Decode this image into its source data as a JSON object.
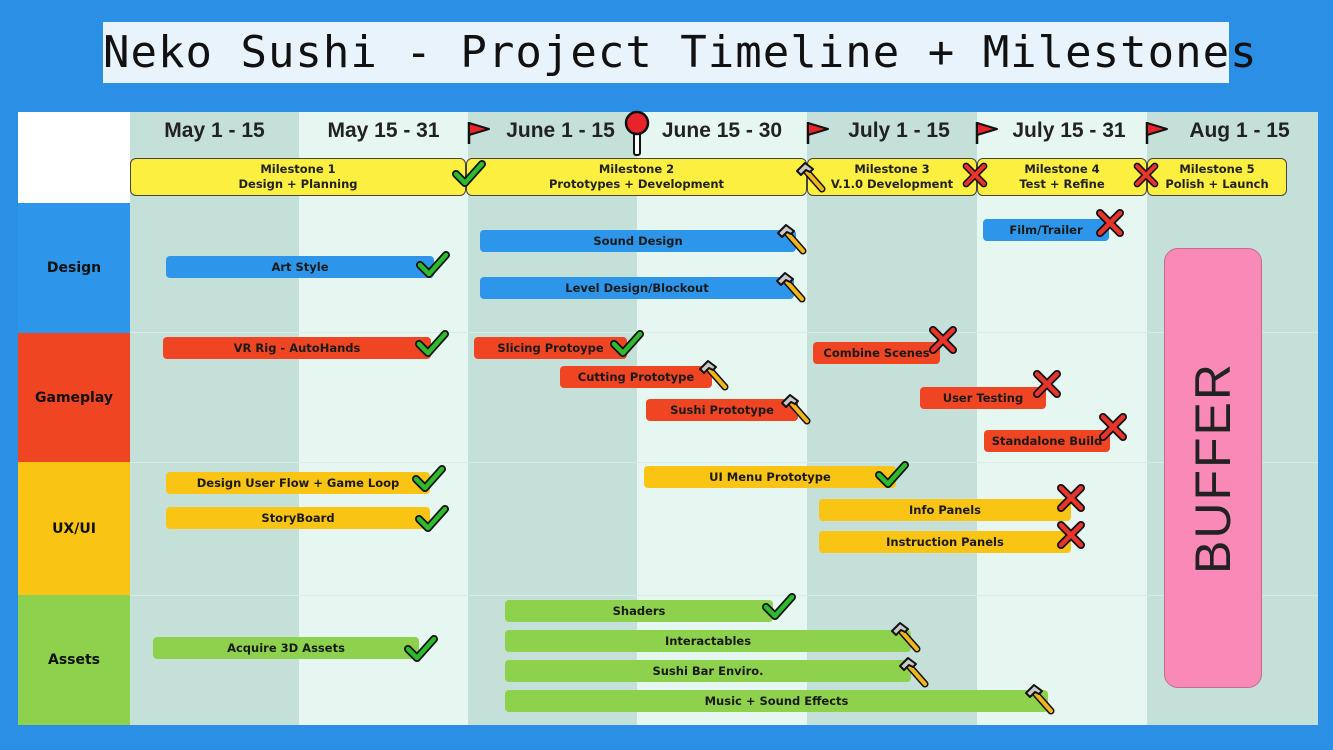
{
  "title": "Neko Sushi - Project Timeline + Milestones",
  "columns": [
    "May 1 - 15",
    "May 15 - 31",
    "June 1 - 15",
    "June 15 - 30",
    "July 1 - 15",
    "July 15 - 31",
    "Aug 1 - 15"
  ],
  "milestones": [
    {
      "name": "Milestone 1",
      "desc": "Design + Planning",
      "status": "done"
    },
    {
      "name": "Milestone 2",
      "desc": "Prototypes + Development",
      "status": "in-progress"
    },
    {
      "name": "Milestone 3",
      "desc": "V.1.0 Development",
      "status": "not-started"
    },
    {
      "name": "Milestone 4",
      "desc": "Test + Refine",
      "status": "not-started"
    },
    {
      "name": "Milestone 5",
      "desc": "Polish + Launch",
      "status": "none"
    }
  ],
  "rows": {
    "design": "Design",
    "gameplay": "Gameplay",
    "uxui": "UX/UI",
    "assets": "Assets"
  },
  "tasks": {
    "art_style": "Art Style",
    "sound_design": "Sound Design",
    "level_design": "Level Design/Blockout",
    "film_trailer": "Film/Trailer",
    "vr_rig": "VR Rig - AutoHands",
    "slicing": "Slicing Protoype",
    "cutting": "Cutting Prototype",
    "sushi": "Sushi Prototype",
    "combine": "Combine Scenes",
    "user_testing": "User Testing",
    "standalone": "Standalone Build",
    "user_flow": "Design User Flow + Game Loop",
    "storyboard": "StoryBoard",
    "ui_menu": "UI Menu Prototype",
    "info_panels": "Info Panels",
    "instruction_panels": "Instruction Panels",
    "shaders": "Shaders",
    "acquire_assets": "Acquire 3D Assets",
    "interactables": "Interactables",
    "sushi_bar": "Sushi Bar Enviro.",
    "music": "Music + Sound Effects"
  },
  "buffer": "BUFFER",
  "colors": {
    "background": "#2b8fe6",
    "design": "#2e96ea",
    "gameplay": "#ef4523",
    "uxui": "#f9c414",
    "assets": "#8ed14c",
    "milestone": "#fcef40",
    "buffer": "#f98ab8",
    "check": "#2dbb2d",
    "cross": "#e8342a"
  },
  "icons": {
    "done": "check-icon",
    "in_progress": "hammer-icon",
    "not_started": "cross-icon",
    "milestone": "red-flag-icon",
    "today": "pin-icon"
  }
}
